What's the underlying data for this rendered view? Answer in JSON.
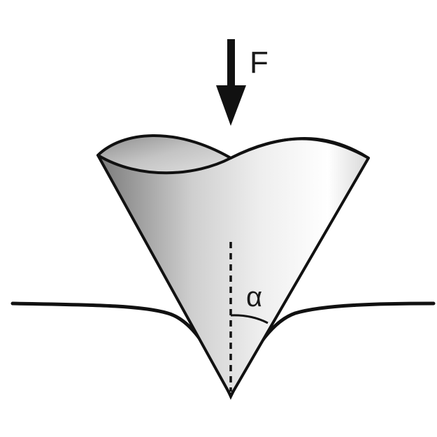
{
  "labels": {
    "force": "F",
    "angle": "α"
  }
}
